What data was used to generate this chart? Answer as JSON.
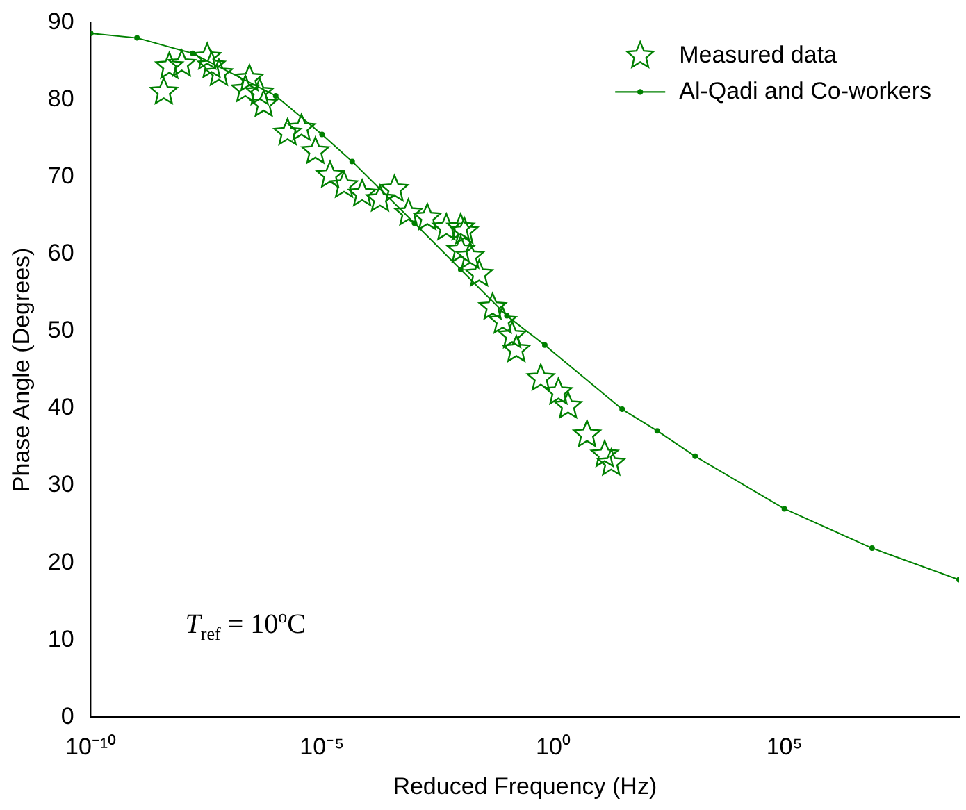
{
  "chart_data": {
    "type": "scatter",
    "xlabel": "Reduced Frequency (Hz)",
    "ylabel": "Phase Angle (Degrees)",
    "log": "x",
    "xlim": [
      1e-10,
      600000000.0
    ],
    "xticks": [
      {
        "value": 1e-10,
        "label": "10⁻¹⁰"
      },
      {
        "value": 1e-05,
        "label": "10⁻⁵"
      },
      {
        "value": 1,
        "label": "10⁰"
      },
      {
        "value": 100000.0,
        "label": "10⁵"
      }
    ],
    "ylim": [
      0,
      90
    ],
    "yticks": [
      0,
      10,
      20,
      30,
      40,
      50,
      60,
      70,
      80,
      90
    ],
    "grid": false,
    "legend": "top right",
    "annotations": [
      "T$_{ref}$ = 10$^{o}$C"
    ],
    "series": [
      {
        "name": "Measured data",
        "marker": "star",
        "color": "#008000",
        "x": [
          3.8e-09,
          5e-09,
          9.3e-09,
          3.3e-08,
          4.1e-08,
          5.9e-08,
          2.2e-07,
          2.7e-07,
          4.5e-07,
          5.5e-07,
          1.8e-06,
          3.6e-06,
          7.2e-06,
          1.5e-05,
          3e-05,
          7.4e-05,
          0.00018,
          0.00037,
          0.00074,
          0.0019,
          0.0049,
          0.01,
          0.01,
          0.012,
          0.016,
          0.025,
          0.049,
          0.081,
          0.13,
          0.16,
          0.54,
          1.3,
          2.1,
          5.4,
          13,
          18
        ],
        "values": [
          81.0,
          84.3,
          84.6,
          85.5,
          84.4,
          83.4,
          81.3,
          82.7,
          80.9,
          79.4,
          75.7,
          76.3,
          73.3,
          70.2,
          68.9,
          67.8,
          67.1,
          68.4,
          65.3,
          64.7,
          63.4,
          63.4,
          60.5,
          62.9,
          59.7,
          57.4,
          53.1,
          51.3,
          49.4,
          47.6,
          43.9,
          42.1,
          40.3,
          36.6,
          34.0,
          32.9
        ]
      },
      {
        "name": "Al-Qadi and Co-workers",
        "type": "line",
        "marker": "circle",
        "color": "#008000",
        "x": [
          1e-10,
          1e-09,
          1.6e-08,
          1e-06,
          1e-05,
          4.5e-05,
          0.001,
          0.01,
          0.1,
          0.66,
          31,
          178,
          1175,
          100000.0,
          7900000.0,
          600000000.0
        ],
        "values": [
          88.6,
          88.0,
          86.0,
          80.5,
          75.5,
          72,
          64,
          58,
          52,
          48.2,
          39.9,
          37.1,
          33.8,
          27.0,
          21.9,
          17.8
        ]
      }
    ]
  }
}
